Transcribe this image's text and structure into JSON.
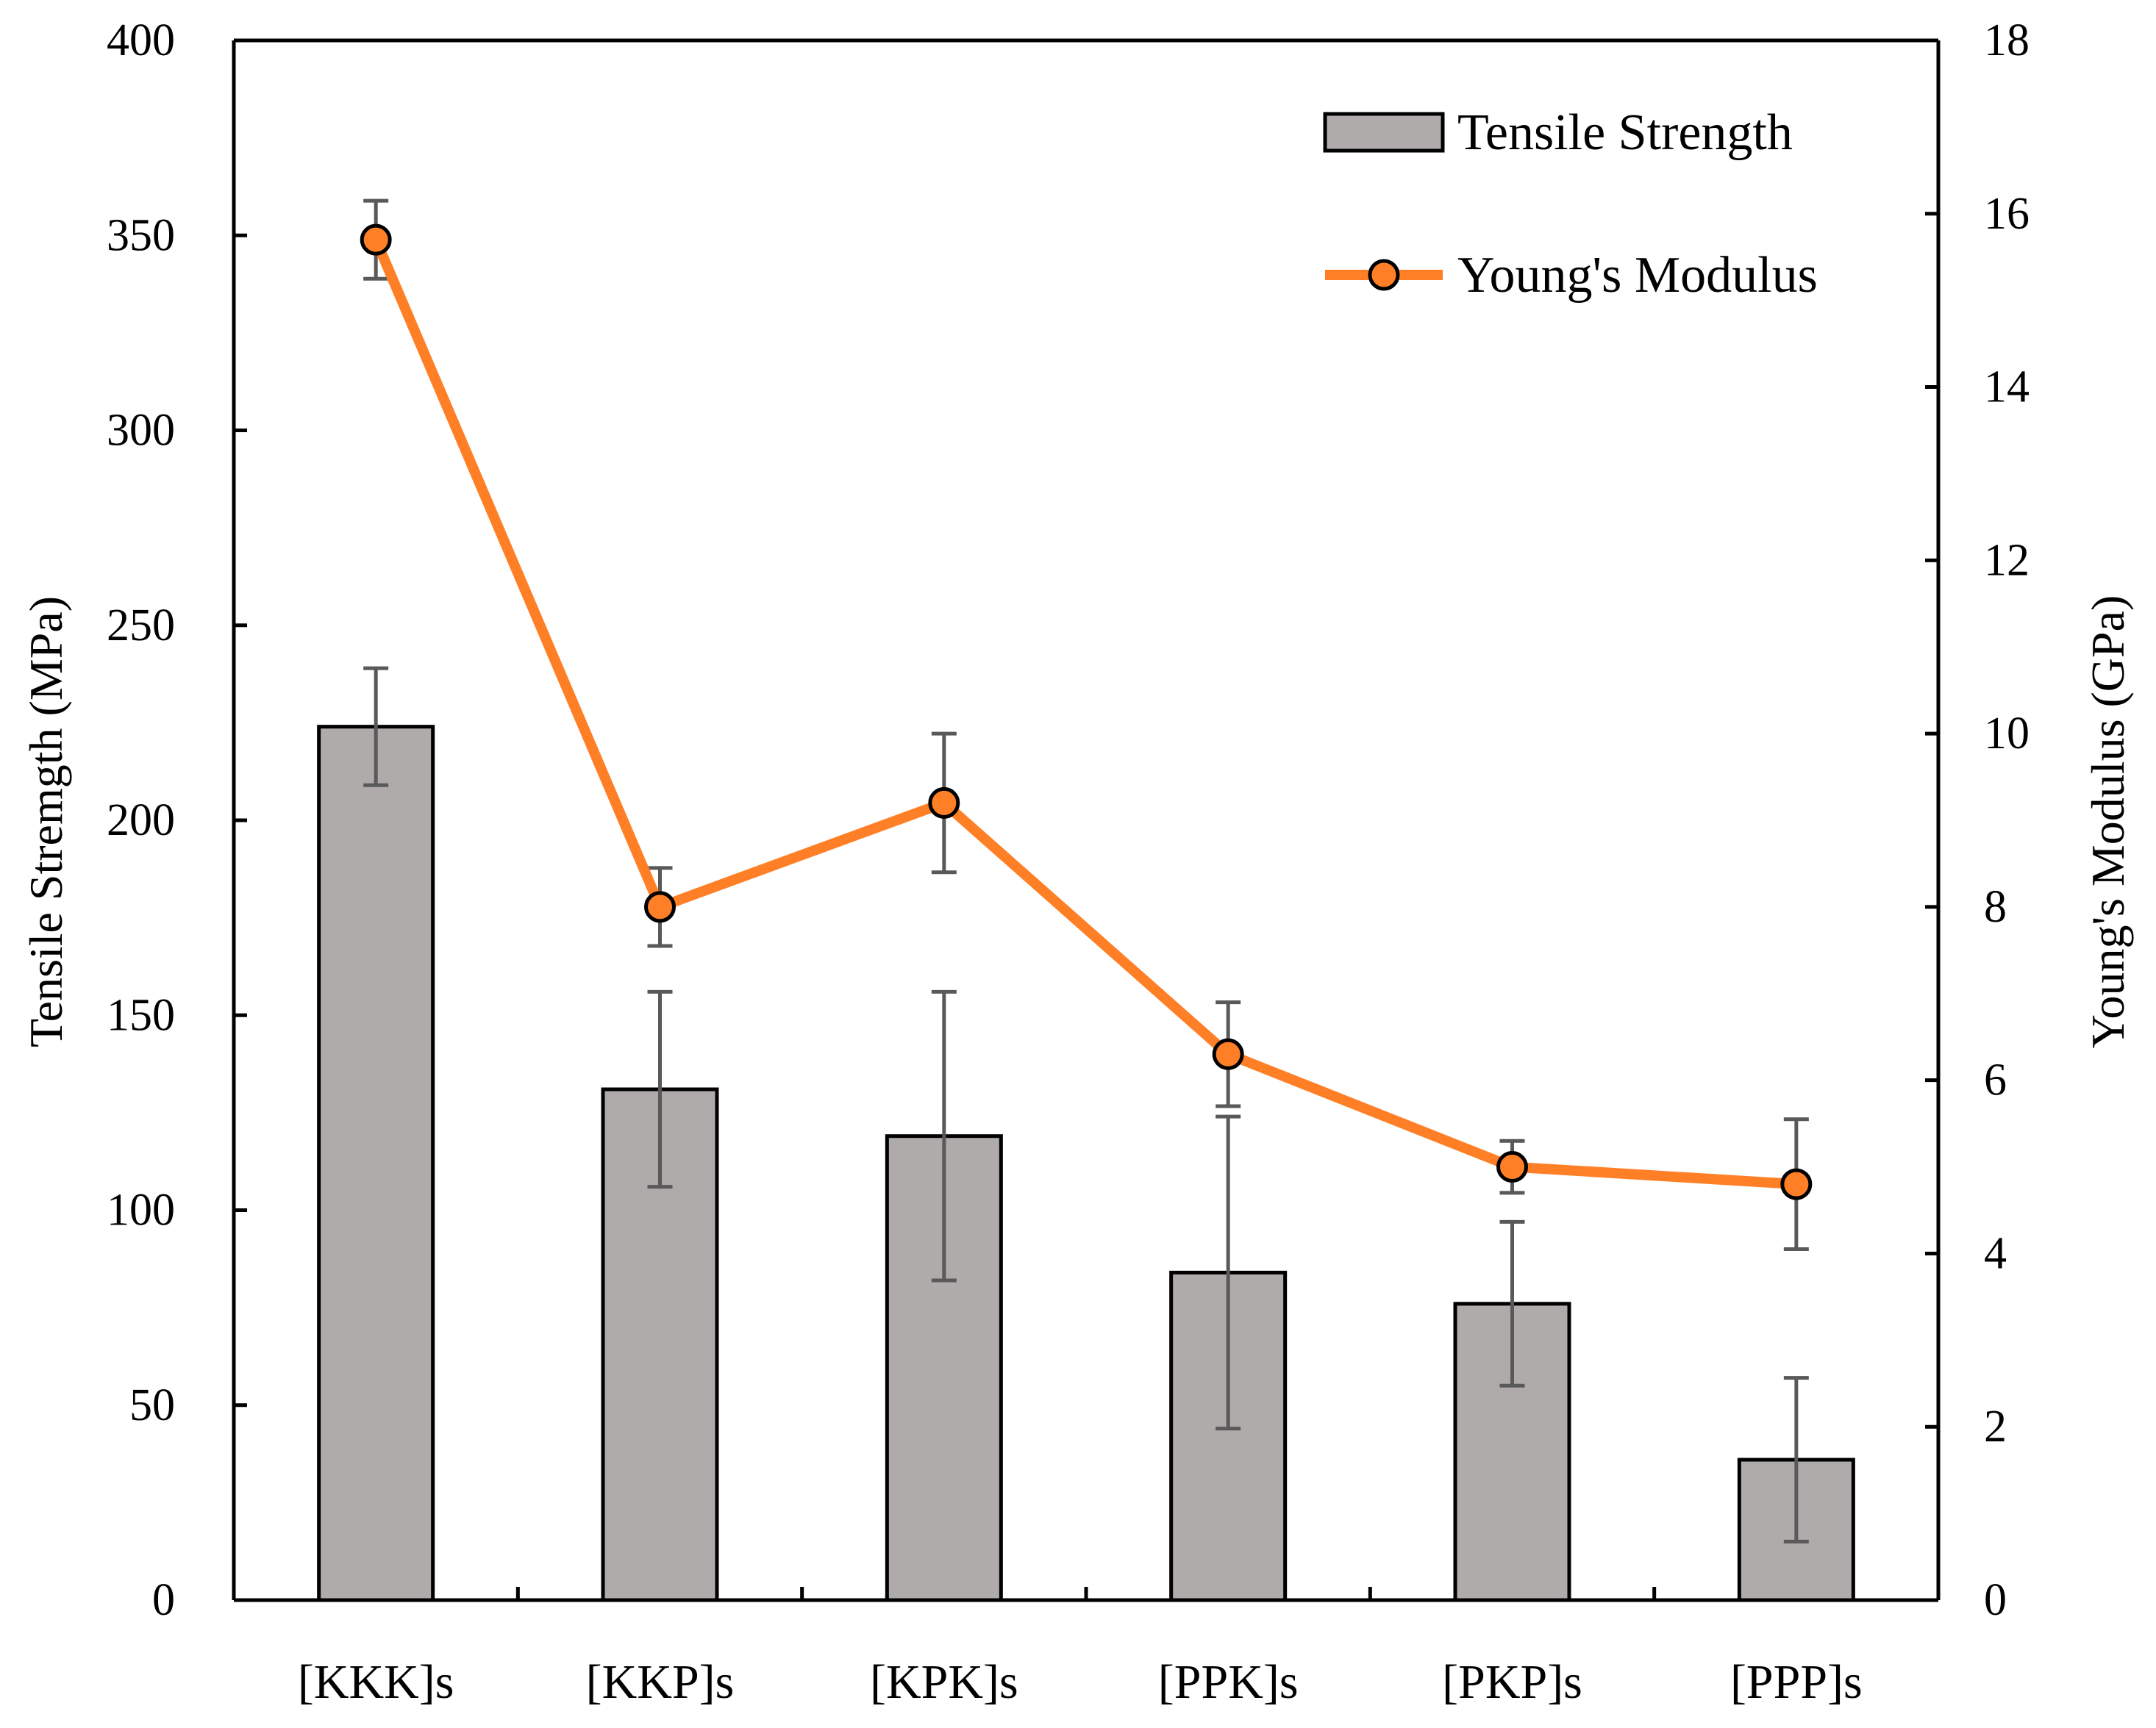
{
  "chart_data": {
    "type": "bar+line",
    "categories": [
      "[KKK]s",
      "[KKP]s",
      "[KPK]s",
      "[PPK]s",
      "[PKP]s",
      "[PPP]s"
    ],
    "series": [
      {
        "name": "Tensile Strength",
        "type": "bar",
        "axis": "left",
        "values": [
          224,
          131,
          119,
          84,
          76,
          36
        ],
        "error": [
          15,
          25,
          37,
          40,
          21,
          21
        ]
      },
      {
        "name": "Young's Modulus",
        "type": "line",
        "axis": "right",
        "values": [
          15.7,
          8.0,
          9.2,
          6.3,
          5.0,
          4.8
        ],
        "error": [
          0.45,
          0.45,
          0.8,
          0.6,
          0.3,
          0.75
        ]
      }
    ],
    "ylabel": "Tensile Stremgth (MPa)",
    "y2label": "Young's Modulus (GPa)",
    "xlabel": "",
    "ylim": [
      0,
      400
    ],
    "y2lim": [
      0,
      18
    ],
    "yticks": [
      0,
      50,
      100,
      150,
      200,
      250,
      300,
      350,
      400
    ],
    "y2ticks": [
      0,
      2,
      4,
      6,
      8,
      10,
      12,
      14,
      16,
      18
    ],
    "legend_position": "top-right",
    "colors": {
      "bar_fill": "#AFABAB",
      "bar_edge": "#000000",
      "line": "#FF7F27",
      "marker_fill": "#FF7F27",
      "marker_edge": "#000000",
      "error_bar": "#595959"
    }
  }
}
